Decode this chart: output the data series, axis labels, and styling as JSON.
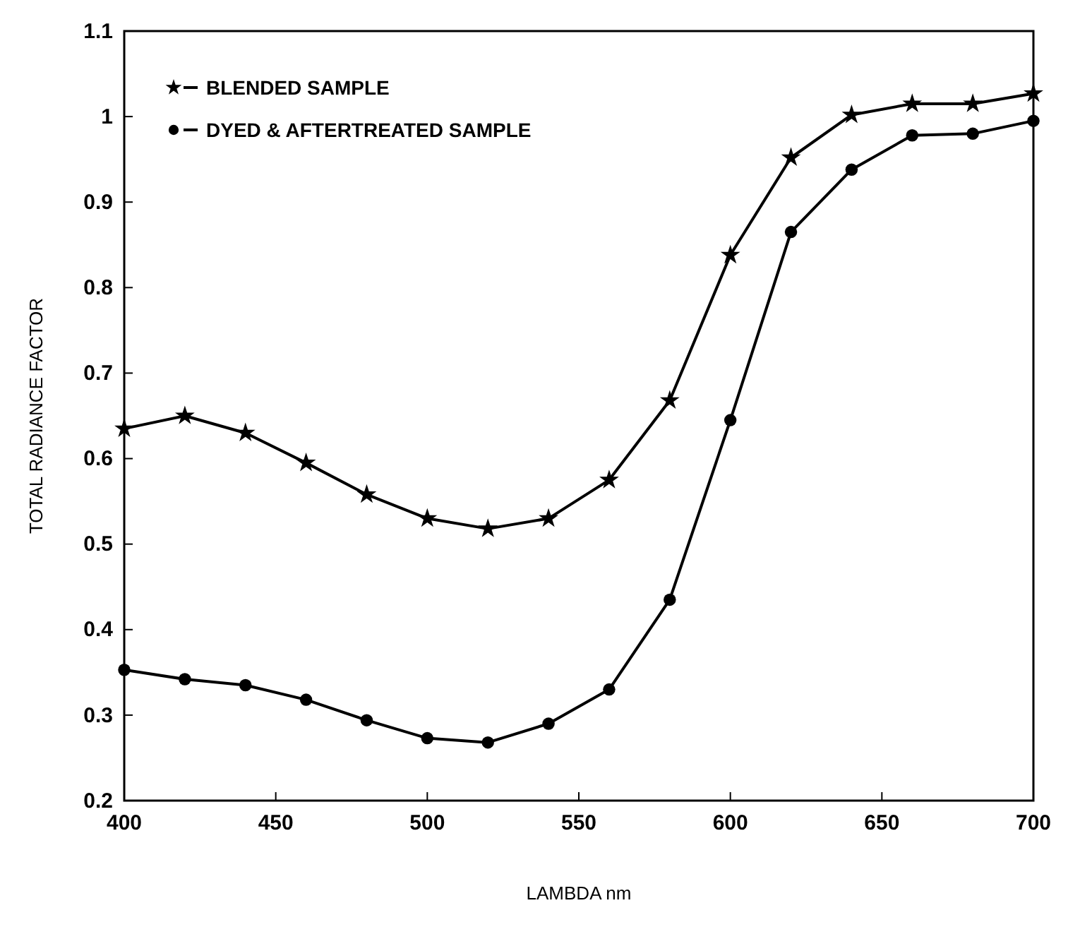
{
  "chart_data": {
    "type": "line",
    "xlabel": "LAMBDA nm",
    "ylabel": "TOTAL RADIANCE FACTOR",
    "x": [
      400,
      420,
      440,
      460,
      480,
      500,
      520,
      540,
      560,
      580,
      600,
      620,
      640,
      660,
      680,
      700
    ],
    "xlim": [
      400,
      700
    ],
    "xticks": [
      400,
      450,
      500,
      550,
      600,
      650,
      700
    ],
    "ylim": [
      0.2,
      1.1
    ],
    "yticks": [
      0.2,
      0.3,
      0.4,
      0.5,
      0.6,
      0.7,
      0.8,
      0.9,
      1,
      1.1
    ],
    "grid": false,
    "legend": "top left",
    "line_style": "solid",
    "series": [
      {
        "name": "BLENDED SAMPLE",
        "color": "#000000",
        "marker": "star",
        "values": [
          0.635,
          0.65,
          0.63,
          0.595,
          0.558,
          0.53,
          0.518,
          0.53,
          0.575,
          0.668,
          0.838,
          0.952,
          1.002,
          1.015,
          1.015,
          1.027
        ]
      },
      {
        "name": "DYED & AFTERTREATED SAMPLE",
        "color": "#000000",
        "marker": "circle",
        "values": [
          0.353,
          0.342,
          0.335,
          0.318,
          0.294,
          0.273,
          0.268,
          0.29,
          0.33,
          0.435,
          0.645,
          0.865,
          0.938,
          0.978,
          0.98,
          0.995
        ]
      }
    ]
  }
}
